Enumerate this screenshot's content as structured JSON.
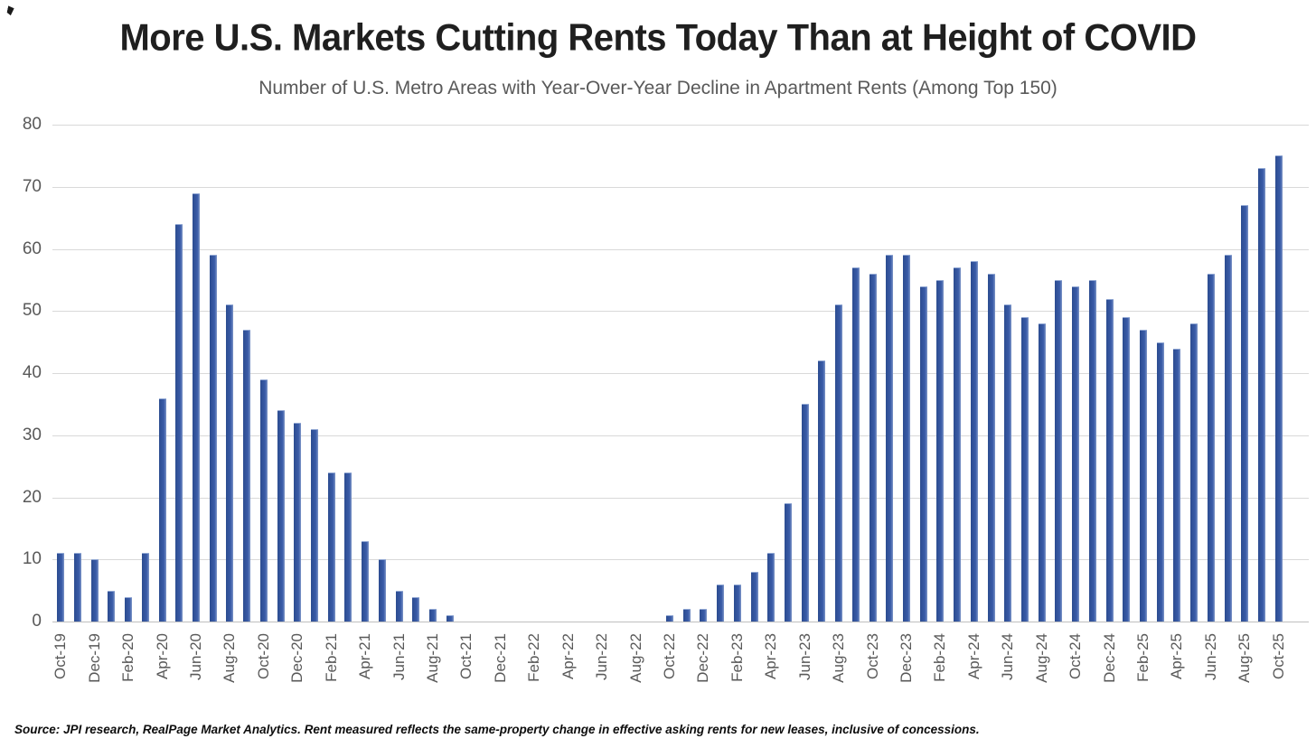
{
  "title": "More U.S. Markets Cutting Rents Today Than at Height of COVID",
  "subtitle": "Number of U.S. Metro Areas with Year-Over-Year Decline in Apartment Rents (Among Top 150)",
  "footer": "Source: JPI research, RealPage Market Analytics. Rent measured reflects the same-property change in effective asking rents for new leases, inclusive of concessions.",
  "chart_data": {
    "type": "bar",
    "title": "More U.S. Markets Cutting Rents Today Than at Height of COVID",
    "subtitle": "Number of U.S. Metro Areas with Year-Over-Year Decline in Apartment Rents (Among Top 150)",
    "x": [
      "Oct-19",
      "Nov-19",
      "Dec-19",
      "Jan-20",
      "Feb-20",
      "Mar-20",
      "Apr-20",
      "May-20",
      "Jun-20",
      "Jul-20",
      "Aug-20",
      "Sep-20",
      "Oct-20",
      "Nov-20",
      "Dec-20",
      "Jan-21",
      "Feb-21",
      "Mar-21",
      "Apr-21",
      "May-21",
      "Jun-21",
      "Jul-21",
      "Aug-21",
      "Sep-21",
      "Oct-21",
      "Nov-21",
      "Dec-21",
      "Jan-22",
      "Feb-22",
      "Mar-22",
      "Apr-22",
      "May-22",
      "Jun-22",
      "Jul-22",
      "Aug-22",
      "Sep-22",
      "Oct-22",
      "Nov-22",
      "Dec-22",
      "Jan-23",
      "Feb-23",
      "Mar-23",
      "Apr-23",
      "May-23",
      "Jun-23",
      "Jul-23",
      "Aug-23",
      "Sep-23",
      "Oct-23",
      "Nov-23",
      "Dec-23",
      "Jan-24",
      "Feb-24",
      "Mar-24",
      "Apr-24",
      "May-24",
      "Jun-24",
      "Jul-24",
      "Aug-24",
      "Sep-24",
      "Oct-24",
      "Nov-24",
      "Dec-24",
      "Jan-25",
      "Feb-25",
      "Mar-25",
      "Apr-25",
      "May-25",
      "Jun-25",
      "Jul-25",
      "Aug-25",
      "Sep-25",
      "Oct-25"
    ],
    "values": [
      11,
      11,
      10,
      5,
      4,
      11,
      36,
      64,
      69,
      59,
      51,
      47,
      39,
      34,
      32,
      31,
      24,
      24,
      13,
      10,
      5,
      4,
      2,
      1,
      0,
      0,
      0,
      0,
      0,
      0,
      0,
      0,
      0,
      0,
      0,
      0,
      1,
      2,
      2,
      6,
      6,
      8,
      11,
      19,
      35,
      42,
      51,
      57,
      56,
      59,
      59,
      54,
      55,
      57,
      58,
      56,
      51,
      49,
      48,
      55,
      54,
      55,
      52,
      49,
      47,
      45,
      44,
      48,
      56,
      59,
      67,
      73,
      75
    ],
    "x_tick_labels": [
      "Oct-19",
      "Dec-19",
      "Feb-20",
      "Apr-20",
      "Jun-20",
      "Aug-20",
      "Oct-20",
      "Dec-20",
      "Feb-21",
      "Apr-21",
      "Jun-21",
      "Aug-21",
      "Oct-21",
      "Dec-21",
      "Feb-22",
      "Apr-22",
      "Jun-22",
      "Aug-22",
      "Oct-22",
      "Dec-22",
      "Feb-23",
      "Apr-23",
      "Jun-23",
      "Aug-23",
      "Oct-23",
      "Dec-23",
      "Feb-24",
      "Apr-24",
      "Jun-24",
      "Aug-24",
      "Oct-24",
      "Dec-24",
      "Feb-25",
      "Apr-25",
      "Jun-25",
      "Aug-25",
      "Oct-25"
    ],
    "x_tick_every": 2,
    "y_ticks": [
      0,
      10,
      20,
      30,
      40,
      50,
      60,
      70,
      80
    ],
    "ylim": [
      0,
      80
    ],
    "grid": "horizontal",
    "legend": "none",
    "bar_color": "#33559C",
    "bar_highlight_color": "#7F97C8",
    "gridline_color": "#D9D9D9",
    "axis_line_color": "#BFBFBF",
    "tick_label_color": "#595959",
    "title_color": "#1F1F1F",
    "subtitle_color": "#595959"
  }
}
